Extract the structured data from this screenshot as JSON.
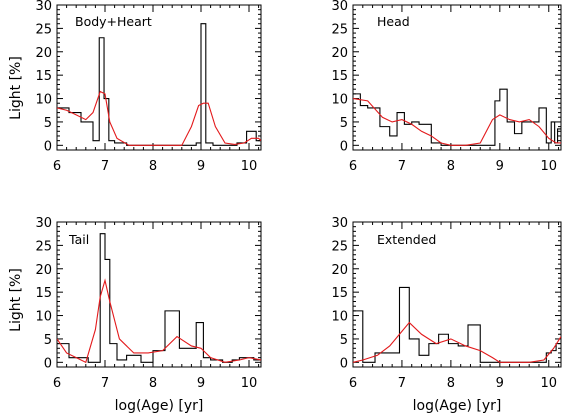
{
  "chart_data": [
    {
      "type": "line",
      "title": "Body+Heart",
      "xlabel": "",
      "ylabel": "Light [%]",
      "xlim": [
        6,
        10.25
      ],
      "ylim": [
        -1,
        30
      ],
      "xticks": [
        "6",
        "7",
        "8",
        "9",
        "10"
      ],
      "yticks": [
        "0",
        "5",
        "10",
        "15",
        "20",
        "25",
        "30"
      ],
      "series": [
        {
          "style": "histogram",
          "color": "#000000",
          "edges": [
            6.0,
            6.25,
            6.5,
            6.75,
            6.88,
            6.98,
            7.08,
            7.2,
            7.45,
            7.7,
            8.0,
            8.3,
            8.6,
            8.9,
            9.0,
            9.1,
            9.25,
            9.5,
            9.75,
            9.95,
            10.15,
            10.25
          ],
          "values": [
            8,
            7,
            5,
            1,
            23,
            10,
            1,
            0.5,
            0,
            0,
            0,
            0,
            0,
            0.5,
            26,
            0.5,
            0,
            0,
            0.5,
            3,
            1
          ]
        },
        {
          "style": "line",
          "color": "#e31a1c",
          "x": [
            6.0,
            6.2,
            6.4,
            6.6,
            6.75,
            6.9,
            7.0,
            7.1,
            7.25,
            7.5,
            7.75,
            8.0,
            8.3,
            8.6,
            8.8,
            8.95,
            9.05,
            9.15,
            9.3,
            9.5,
            9.7,
            9.9,
            10.05,
            10.2,
            10.25
          ],
          "y": [
            8,
            7.5,
            6.5,
            5.5,
            7,
            11.5,
            11,
            5,
            1.5,
            0,
            0,
            0,
            0,
            0,
            4,
            8.5,
            9,
            9,
            4,
            0.5,
            0.2,
            0.5,
            1.5,
            1.5,
            1
          ]
        }
      ]
    },
    {
      "type": "line",
      "title": "Head",
      "xlabel": "",
      "ylabel": "",
      "xlim": [
        6,
        10.25
      ],
      "ylim": [
        -1,
        30
      ],
      "xticks": [
        "6",
        "7",
        "8",
        "9",
        "10"
      ],
      "yticks": [
        "0",
        "5",
        "10",
        "15",
        "20",
        "25",
        "30"
      ],
      "series": [
        {
          "style": "histogram",
          "color": "#000000",
          "edges": [
            6.0,
            6.15,
            6.3,
            6.55,
            6.75,
            6.9,
            7.05,
            7.2,
            7.35,
            7.6,
            7.8,
            8.0,
            8.3,
            8.6,
            8.9,
            9.0,
            9.15,
            9.3,
            9.45,
            9.65,
            9.8,
            9.95,
            10.05,
            10.12,
            10.18,
            10.25
          ],
          "values": [
            11,
            8.5,
            8,
            4,
            2,
            7,
            4.5,
            5,
            4.5,
            0.5,
            0,
            0,
            0,
            0,
            9.5,
            12,
            5,
            2.5,
            5,
            5,
            8,
            0.5,
            5,
            0.5,
            3.5
          ]
        },
        {
          "style": "line",
          "color": "#e31a1c",
          "x": [
            6.0,
            6.3,
            6.6,
            6.8,
            7.0,
            7.2,
            7.4,
            7.6,
            7.8,
            8.0,
            8.3,
            8.6,
            8.85,
            9.0,
            9.2,
            9.4,
            9.6,
            9.8,
            10.0,
            10.15,
            10.25
          ],
          "y": [
            10,
            9.5,
            6,
            5,
            5.5,
            4.5,
            3,
            2,
            0.5,
            0,
            0,
            0.5,
            5.5,
            6.5,
            5.5,
            5,
            5.5,
            4,
            1.5,
            0.5,
            0.5
          ]
        }
      ]
    },
    {
      "type": "line",
      "title": "Tail",
      "xlabel": "log(Age) [yr]",
      "ylabel": "Light [%]",
      "xlim": [
        6,
        10.25
      ],
      "ylim": [
        -1,
        30
      ],
      "xticks": [
        "6",
        "7",
        "8",
        "9",
        "10"
      ],
      "yticks": [
        "0",
        "5",
        "10",
        "15",
        "20",
        "25",
        "30"
      ],
      "series": [
        {
          "style": "histogram",
          "color": "#000000",
          "edges": [
            6.0,
            6.25,
            6.65,
            6.9,
            7.0,
            7.1,
            7.25,
            7.45,
            7.75,
            8.0,
            8.25,
            8.55,
            8.9,
            9.05,
            9.2,
            9.45,
            9.65,
            9.8,
            9.95,
            10.1,
            10.25
          ],
          "values": [
            4,
            1,
            0,
            27.5,
            22,
            4,
            0.5,
            1.5,
            0,
            2.5,
            11,
            3,
            8.5,
            1,
            0.5,
            0,
            0.5,
            1,
            1,
            0.5
          ]
        },
        {
          "style": "line",
          "color": "#e31a1c",
          "x": [
            6.0,
            6.2,
            6.4,
            6.6,
            6.8,
            6.9,
            7.0,
            7.1,
            7.3,
            7.6,
            7.9,
            8.2,
            8.5,
            8.8,
            9.0,
            9.2,
            9.5,
            9.8,
            10.0,
            10.25
          ],
          "y": [
            5,
            2,
            1,
            0,
            7,
            14,
            17.5,
            13,
            5,
            2,
            2,
            2.5,
            5.5,
            3.5,
            3,
            1,
            0,
            0.5,
            1,
            0.5
          ]
        }
      ]
    },
    {
      "type": "line",
      "title": "Extended",
      "xlabel": "log(Age) [yr]",
      "ylabel": "",
      "xlim": [
        6,
        10.25
      ],
      "ylim": [
        -1,
        30
      ],
      "xticks": [
        "6",
        "7",
        "8",
        "9",
        "10"
      ],
      "yticks": [
        "0",
        "5",
        "10",
        "15",
        "20",
        "25",
        "30"
      ],
      "series": [
        {
          "style": "histogram",
          "color": "#000000",
          "edges": [
            6.0,
            6.2,
            6.45,
            6.95,
            7.15,
            7.35,
            7.55,
            7.75,
            7.95,
            8.15,
            8.35,
            8.6,
            8.9,
            9.2,
            9.5,
            9.8,
            9.95,
            10.05,
            10.15,
            10.25
          ],
          "values": [
            11,
            0,
            2,
            16,
            5,
            1.5,
            4,
            6,
            4,
            3.5,
            8,
            0,
            0,
            0,
            0,
            0,
            2,
            2.5,
            4
          ]
        },
        {
          "style": "line",
          "color": "#e31a1c",
          "x": [
            6.0,
            6.2,
            6.5,
            6.75,
            6.95,
            7.15,
            7.4,
            7.7,
            8.0,
            8.3,
            8.6,
            8.85,
            9.0,
            9.3,
            9.6,
            9.9,
            10.1,
            10.25
          ],
          "y": [
            0,
            0.5,
            1.5,
            3.5,
            6,
            8.5,
            6,
            4,
            5,
            3.5,
            2.5,
            1,
            0,
            0,
            0,
            0.5,
            3,
            5.5
          ]
        }
      ]
    }
  ]
}
